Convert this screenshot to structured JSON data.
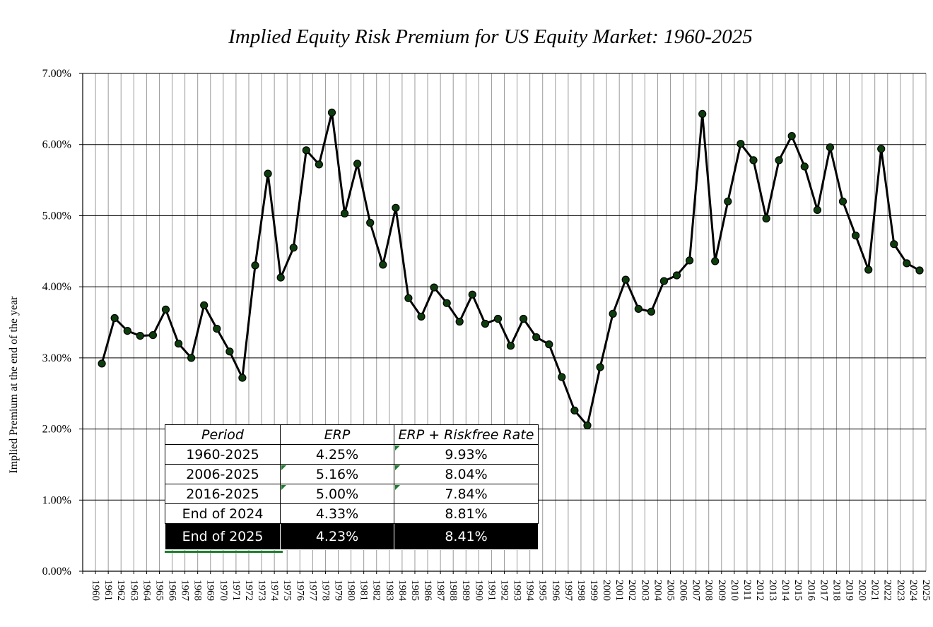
{
  "chart_data": {
    "type": "line",
    "title": "Implied Equity Risk Premium for US Equity Market: 1960-2025",
    "ylabel": "Implied Premium at the end of the year",
    "xlabel": "",
    "ylim": [
      0,
      7
    ],
    "yticks": [
      "0.00%",
      "1.00%",
      "2.00%",
      "3.00%",
      "4.00%",
      "5.00%",
      "6.00%",
      "7.00%"
    ],
    "x_categories": [
      "1960",
      "1961",
      "1962",
      "1963",
      "1964",
      "1965",
      "1966",
      "1967",
      "1968",
      "1969",
      "1970",
      "1971",
      "1972",
      "1973",
      "1974",
      "1975",
      "1976",
      "1977",
      "1978",
      "1979",
      "1980",
      "1981",
      "1982",
      "1983",
      "1984",
      "1985",
      "1986",
      "1987",
      "1988",
      "1989",
      "1990",
      "1991",
      "1992",
      "1993",
      "1994",
      "1995",
      "1996",
      "1997",
      "1998",
      "1999",
      "2000",
      "2001",
      "2002",
      "2003",
      "2004",
      "2005",
      "2006",
      "2007",
      "2008",
      "2009",
      "2010",
      "2011",
      "2012",
      "2013",
      "2014",
      "2015",
      "2016",
      "2017",
      "2018",
      "2019",
      "2020",
      "2021",
      "2022",
      "2023",
      "2024",
      "2025"
    ],
    "series": [
      {
        "name": "",
        "x": [
          "1961",
          "1962",
          "1963",
          "1964",
          "1965",
          "1966",
          "1967",
          "1968",
          "1969",
          "1970",
          "1971",
          "1972",
          "1973",
          "1974",
          "1975",
          "1976",
          "1977",
          "1978",
          "1979",
          "1980",
          "1981",
          "1982",
          "1983",
          "1984",
          "1985",
          "1986",
          "1987",
          "1988",
          "1989",
          "1990",
          "1991",
          "1992",
          "1993",
          "1994",
          "1995",
          "1996",
          "1997",
          "1998",
          "1999",
          "2000",
          "2001",
          "2002",
          "2003",
          "2004",
          "2005",
          "2006",
          "2007",
          "2008",
          "2009",
          "2010",
          "2011",
          "2012",
          "2013",
          "2014",
          "2015",
          "2016",
          "2017",
          "2018",
          "2019",
          "2020",
          "2021",
          "2022",
          "2023",
          "2024",
          "2025"
        ],
        "values": [
          2.92,
          3.56,
          3.38,
          3.31,
          3.32,
          3.68,
          3.2,
          3.0,
          3.74,
          3.41,
          3.09,
          2.72,
          4.3,
          5.59,
          4.13,
          4.55,
          5.92,
          5.72,
          6.45,
          5.03,
          5.73,
          4.9,
          4.31,
          5.11,
          3.84,
          3.58,
          3.99,
          3.77,
          3.51,
          3.89,
          3.48,
          3.55,
          3.17,
          3.55,
          3.29,
          3.19,
          2.73,
          2.26,
          2.05,
          2.87,
          3.62,
          4.1,
          3.69,
          3.65,
          4.08,
          4.16,
          4.37,
          6.43,
          4.36,
          5.2,
          6.01,
          5.78,
          4.96,
          5.78,
          6.12,
          5.69,
          5.08,
          5.96,
          5.2,
          4.72,
          4.24,
          5.94,
          4.6,
          4.33,
          4.23
        ]
      }
    ],
    "grid": true,
    "legend": "none",
    "line_color": "#000000",
    "marker_color": "#0d3d0d"
  },
  "table": {
    "headers": [
      "Period",
      "ERP",
      "ERP + Riskfree Rate"
    ],
    "rows": [
      [
        "1960-2025",
        "4.25%",
        "9.93%"
      ],
      [
        "2006-2025",
        "5.16%",
        "8.04%"
      ],
      [
        "2016-2025",
        "5.00%",
        "7.84%"
      ],
      [
        "End of 2024",
        "4.33%",
        "8.81%"
      ],
      [
        "End of 2025",
        "4.23%",
        "8.41%"
      ]
    ]
  }
}
